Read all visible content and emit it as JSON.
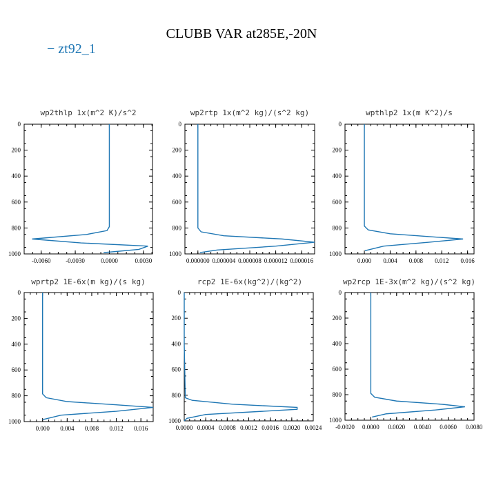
{
  "figure": {
    "title": "CLUBB VAR at285E,-20N",
    "legend": "− zt92_1",
    "line_color": "#1f77b4"
  },
  "chart_data": [
    {
      "type": "line",
      "title": "wp2thlp  1x(m^2 K)/s^2",
      "xlim": [
        -0.0075,
        0.0038
      ],
      "ylim": [
        0,
        1000
      ],
      "y_inverted": true,
      "xticks": [
        -0.006,
        -0.003,
        0.0,
        0.003
      ],
      "xtick_labels": [
        "-0.0060",
        "-0.0030",
        "0.0000",
        "0.0030"
      ],
      "yticks": [
        0,
        200,
        400,
        600,
        800,
        1000
      ],
      "ytick_labels": [
        "0",
        "200",
        "400",
        "600",
        "800",
        "1000"
      ],
      "grid": false,
      "series": [
        {
          "x": [
            0.0,
            0.0,
            0.0,
            -0.0002,
            -0.002,
            -0.0068,
            -0.0025,
            0.0034,
            0.0026,
            -0.0005
          ],
          "y": [
            0,
            400,
            790,
            820,
            850,
            885,
            915,
            940,
            965,
            990
          ]
        }
      ]
    },
    {
      "type": "line",
      "title": "wp2rtp  1x(m^2 kg)/(s^2 kg)",
      "xlim": [
        -2e-06,
        1.8e-05
      ],
      "ylim": [
        0,
        1000
      ],
      "y_inverted": true,
      "xticks": [
        0,
        4e-06,
        8e-06,
        1.2e-05,
        1.6e-05
      ],
      "xtick_labels": [
        "0.000000",
        "0.000004",
        "0.000008",
        "0.000012",
        "0.000016"
      ],
      "yticks": [
        0,
        200,
        400,
        600,
        800,
        1000
      ],
      "ytick_labels": [
        "0",
        "200",
        "400",
        "600",
        "800",
        "1000"
      ],
      "grid": false,
      "series": [
        {
          "x": [
            0.0,
            0.0,
            0.0,
            5e-07,
            4e-06,
            1.3e-05,
            1.8e-05,
            1.2e-05,
            3e-06,
            3e-07
          ],
          "y": [
            0,
            400,
            800,
            830,
            860,
            885,
            910,
            940,
            970,
            990
          ]
        }
      ]
    },
    {
      "type": "line",
      "title": "wpthlp2  1x(m K^2)/s",
      "xlim": [
        -0.003,
        0.017
      ],
      "ylim": [
        0,
        1000
      ],
      "y_inverted": true,
      "xticks": [
        0.0,
        0.004,
        0.008,
        0.012,
        0.016
      ],
      "xtick_labels": [
        "0.000",
        "0.004",
        "0.008",
        "0.012",
        "0.016"
      ],
      "yticks": [
        0,
        200,
        400,
        600,
        800,
        1000
      ],
      "ytick_labels": [
        "0",
        "200",
        "400",
        "600",
        "800",
        "1000"
      ],
      "grid": false,
      "series": [
        {
          "x": [
            0.0,
            0.0,
            0.0,
            0.0006,
            0.004,
            0.011,
            0.0153,
            0.01,
            0.003,
            0.0001
          ],
          "y": [
            0,
            400,
            785,
            815,
            845,
            870,
            885,
            910,
            940,
            975
          ]
        }
      ]
    },
    {
      "type": "line",
      "title": "wprtp2  1E-6x(m kg)/(s kg)",
      "xlim": [
        -0.003,
        0.018
      ],
      "ylim": [
        0,
        1000
      ],
      "y_inverted": true,
      "xticks": [
        0.0,
        0.004,
        0.008,
        0.012,
        0.016
      ],
      "xtick_labels": [
        "0.000",
        "0.004",
        "0.008",
        "0.012",
        "0.016"
      ],
      "yticks": [
        0,
        200,
        400,
        600,
        800,
        1000
      ],
      "ytick_labels": [
        "0",
        "200",
        "400",
        "600",
        "800",
        "1000"
      ],
      "grid": false,
      "series": [
        {
          "x": [
            0.0,
            0.0,
            0.0,
            0.0006,
            0.004,
            0.012,
            0.018,
            0.012,
            0.003,
            0.0
          ],
          "y": [
            0,
            400,
            785,
            815,
            845,
            870,
            890,
            920,
            950,
            985
          ]
        }
      ]
    },
    {
      "type": "line",
      "title": "rcp2  1E-6x(kg^2)/(kg^2)",
      "xlim": [
        0.0,
        0.0024
      ],
      "ylim": [
        0,
        1000
      ],
      "y_inverted": true,
      "xticks": [
        0.0,
        0.0004,
        0.0008,
        0.0012,
        0.0016,
        0.002,
        0.0024
      ],
      "xtick_labels": [
        "0.0000",
        "0.0004",
        "0.0008",
        "0.0012",
        "0.0016",
        "0.0020",
        "0.0024"
      ],
      "yticks": [
        0,
        200,
        400,
        600,
        800,
        1000
      ],
      "ytick_labels": [
        "0",
        "200",
        "400",
        "600",
        "800",
        "1000"
      ],
      "grid": false,
      "series": [
        {
          "x": [
            0.0,
            0.0,
            2e-05,
            0.00015,
            0.0009,
            0.0021,
            0.0021,
            0.0004,
            5e-05,
            0.0
          ],
          "y": [
            0,
            400,
            820,
            840,
            870,
            895,
            910,
            950,
            980,
            1000
          ]
        }
      ]
    },
    {
      "type": "line",
      "title": "wp2rcp  1E-3x(m^2 kg)/(s^2 kg)",
      "xlim": [
        -0.002,
        0.008
      ],
      "ylim": [
        0,
        1000
      ],
      "y_inverted": true,
      "xticks": [
        -0.002,
        0.0,
        0.002,
        0.004,
        0.006,
        0.008
      ],
      "xtick_labels": [
        "-0.0020",
        "0.0000",
        "0.0020",
        "0.0040",
        "0.0060",
        "0.0080"
      ],
      "yticks": [
        0,
        200,
        400,
        600,
        800,
        1000
      ],
      "ytick_labels": [
        "0",
        "200",
        "400",
        "600",
        "800",
        "1000"
      ],
      "grid": false,
      "series": [
        {
          "x": [
            0.0,
            0.0,
            0.0,
            0.0003,
            0.002,
            0.0055,
            0.0073,
            0.005,
            0.0012,
            0.0001
          ],
          "y": [
            0,
            400,
            790,
            820,
            850,
            875,
            895,
            920,
            950,
            975
          ]
        }
      ]
    }
  ]
}
